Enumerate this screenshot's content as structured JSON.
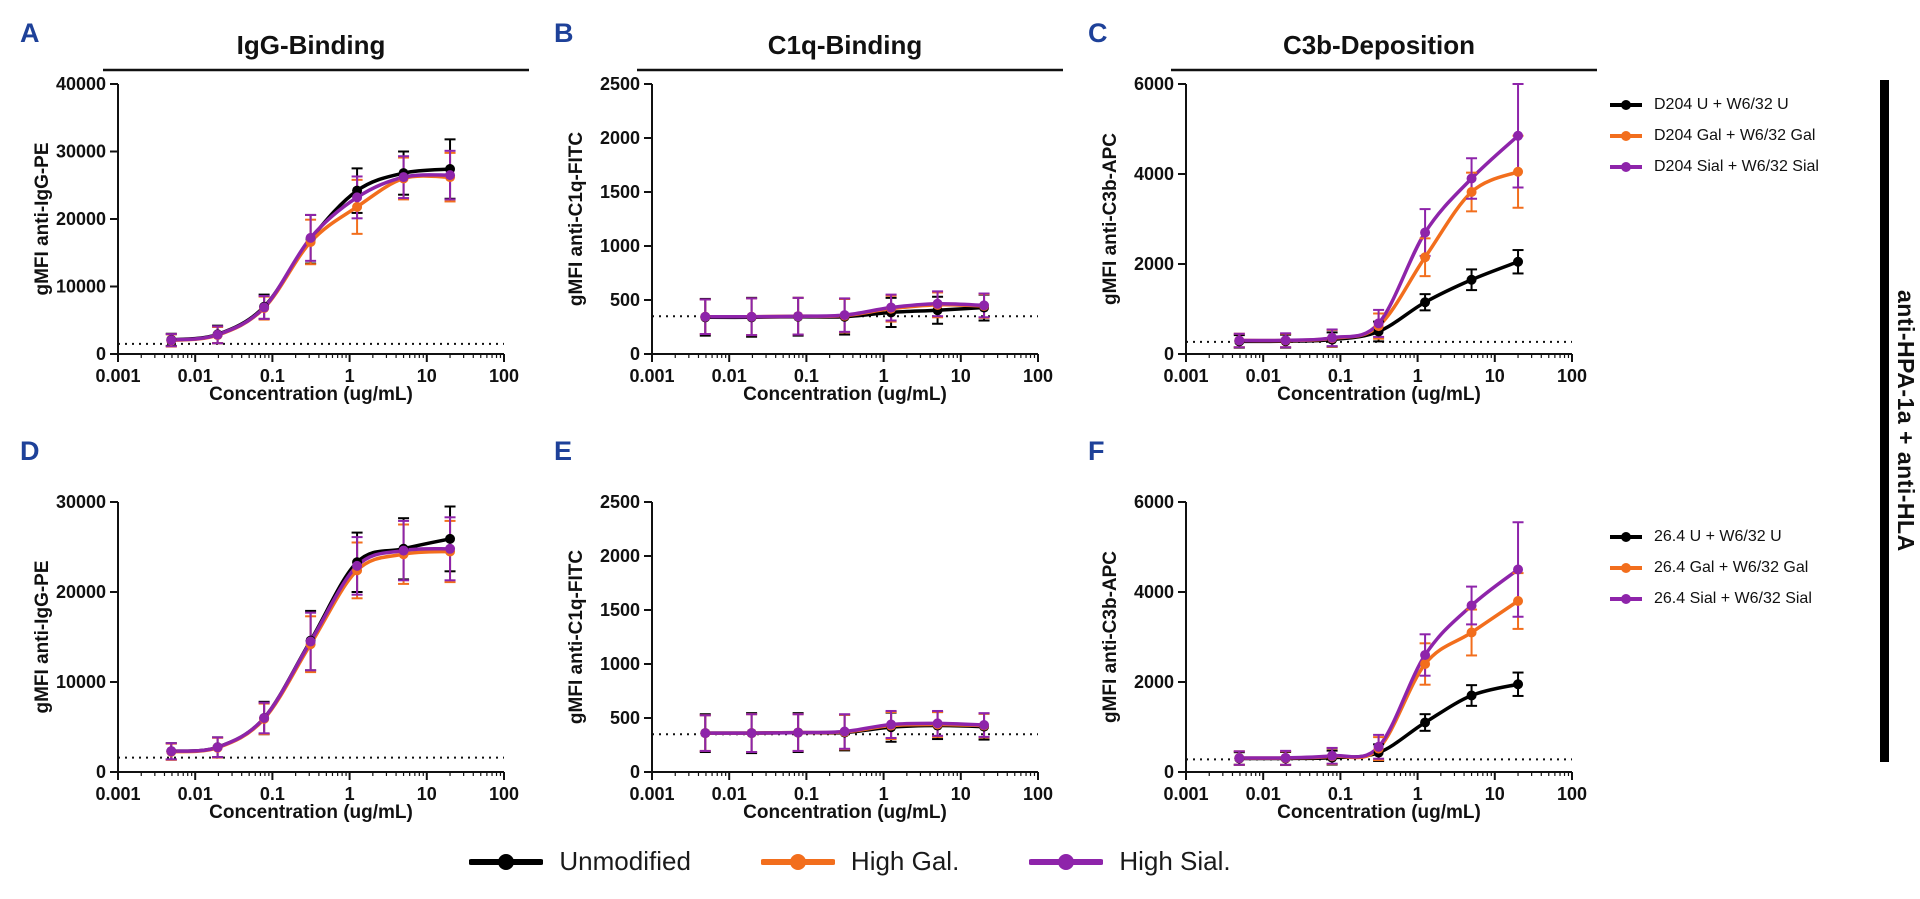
{
  "side_label": "anti-HPA-1a + anti-HLA",
  "colors": {
    "unmodified": "#000000",
    "high_gal": "#F26E1D",
    "high_sial": "#8E24AA",
    "panel_letter": "#1E4199",
    "axis": "#111111"
  },
  "bottom_legend": {
    "items": [
      {
        "label": "Unmodified",
        "color_key": "unmodified"
      },
      {
        "label": "High Gal.",
        "color_key": "high_gal"
      },
      {
        "label": "High Sial.",
        "color_key": "high_sial"
      }
    ]
  },
  "chart_data": [
    {
      "id": "A",
      "type": "line",
      "title": "IgG-Binding",
      "xlabel": "Concentration (ug/mL)",
      "ylabel": "gMFI anti-IgG-PE",
      "xscale": "log",
      "xlim": [
        0.001,
        100
      ],
      "xticks": [
        0.001,
        0.01,
        0.1,
        1,
        10,
        100
      ],
      "xtick_labels": [
        "0.001",
        "0.01",
        "0.1",
        "1",
        "10",
        "100"
      ],
      "ylim": [
        0,
        40000
      ],
      "yticks": [
        0,
        10000,
        20000,
        30000,
        40000
      ],
      "baseline_dotted": 1500,
      "legend_slot": null,
      "x": [
        0.0049,
        0.0195,
        0.0781,
        0.3125,
        1.25,
        5,
        20
      ],
      "series": [
        {
          "name": "D204 U + W6/32 U",
          "color_key": "unmodified",
          "y": [
            2100,
            2900,
            7000,
            17000,
            24200,
            26800,
            27400
          ],
          "err": [
            900,
            1300,
            1800,
            3600,
            3300,
            3200,
            4400
          ]
        },
        {
          "name": "D204 Gal + W6/32 Gal",
          "color_key": "high_gal",
          "y": [
            2000,
            2800,
            6800,
            16600,
            21800,
            26000,
            26200
          ],
          "err": [
            900,
            1200,
            1700,
            3300,
            4000,
            3100,
            3600
          ]
        },
        {
          "name": "D204 Sial + W6/32 Sial",
          "color_key": "high_sial",
          "y": [
            2050,
            2850,
            6900,
            17200,
            23200,
            26200,
            26500
          ],
          "err": [
            900,
            1250,
            1700,
            3400,
            3100,
            3100,
            3600
          ]
        }
      ]
    },
    {
      "id": "B",
      "type": "line",
      "title": "C1q-Binding",
      "xlabel": "Concentration (ug/mL)",
      "ylabel": "gMFI anti-C1q-FITC",
      "xscale": "log",
      "xlim": [
        0.001,
        100
      ],
      "xticks": [
        0.001,
        0.01,
        0.1,
        1,
        10,
        100
      ],
      "xtick_labels": [
        "0.001",
        "0.01",
        "0.1",
        "1",
        "10",
        "100"
      ],
      "ylim": [
        0,
        2500
      ],
      "yticks": [
        0,
        500,
        1000,
        1500,
        2000,
        2500
      ],
      "baseline_dotted": 350,
      "legend_slot": null,
      "x": [
        0.0049,
        0.0195,
        0.0781,
        0.3125,
        1.25,
        5,
        20
      ],
      "series": [
        {
          "name": "D204 U + W6/32 U",
          "color_key": "unmodified",
          "y": [
            340,
            340,
            345,
            345,
            385,
            405,
            430
          ],
          "err": [
            170,
            180,
            175,
            165,
            135,
            125,
            120
          ]
        },
        {
          "name": "D204 Gal + W6/32 Gal",
          "color_key": "high_gal",
          "y": [
            345,
            345,
            350,
            355,
            420,
            455,
            445
          ],
          "err": [
            160,
            170,
            170,
            155,
            120,
            115,
            110
          ]
        },
        {
          "name": "D204 Sial + W6/32 Sial",
          "color_key": "high_sial",
          "y": [
            345,
            345,
            350,
            360,
            430,
            465,
            450
          ],
          "err": [
            160,
            170,
            170,
            155,
            120,
            115,
            110
          ]
        }
      ]
    },
    {
      "id": "C",
      "type": "line",
      "title": "C3b-Deposition",
      "xlabel": "Concentration (ug/mL)",
      "ylabel": "gMFI anti-C3b-APC",
      "xscale": "log",
      "xlim": [
        0.001,
        100
      ],
      "xticks": [
        0.001,
        0.01,
        0.1,
        1,
        10,
        100
      ],
      "xtick_labels": [
        "0.001",
        "0.01",
        "0.1",
        "1",
        "10",
        "100"
      ],
      "ylim": [
        0,
        6000
      ],
      "yticks": [
        0,
        2000,
        4000,
        6000
      ],
      "baseline_dotted": 270,
      "legend_slot": "top",
      "x": [
        0.0049,
        0.0195,
        0.0781,
        0.3125,
        1.25,
        5,
        20
      ],
      "series": [
        {
          "name": "D204 U + W6/32 U",
          "color_key": "unmodified",
          "y": [
            280,
            285,
            320,
            500,
            1150,
            1650,
            2050
          ],
          "err": [
            140,
            145,
            160,
            220,
            180,
            230,
            260
          ]
        },
        {
          "name": "D204 Gal + W6/32 Gal",
          "color_key": "high_gal",
          "y": [
            300,
            300,
            350,
            620,
            2150,
            3600,
            4050
          ],
          "err": [
            150,
            150,
            185,
            280,
            420,
            430,
            800
          ]
        },
        {
          "name": "D204 Sial + W6/32 Sial",
          "color_key": "high_sial",
          "y": [
            300,
            305,
            360,
            680,
            2700,
            3900,
            4850
          ],
          "err": [
            150,
            155,
            185,
            300,
            520,
            450,
            1150
          ]
        }
      ]
    },
    {
      "id": "D",
      "type": "line",
      "title": null,
      "xlabel": "Concentration (ug/mL)",
      "ylabel": "gMFI anti-IgG-PE",
      "xscale": "log",
      "xlim": [
        0.001,
        100
      ],
      "xticks": [
        0.001,
        0.01,
        0.1,
        1,
        10,
        100
      ],
      "xtick_labels": [
        "0.001",
        "0.01",
        "0.1",
        "1",
        "10",
        "100"
      ],
      "ylim": [
        0,
        30000
      ],
      "yticks": [
        0,
        10000,
        20000,
        30000
      ],
      "baseline_dotted": 1600,
      "legend_slot": null,
      "x": [
        0.0049,
        0.0195,
        0.0781,
        0.3125,
        1.25,
        5,
        20
      ],
      "series": [
        {
          "name": "26.4 U + W6/32 U",
          "color_key": "unmodified",
          "y": [
            2300,
            2750,
            6000,
            14600,
            23300,
            24800,
            25900
          ],
          "err": [
            900,
            1100,
            1800,
            3300,
            3300,
            3400,
            3600
          ]
        },
        {
          "name": "26.4 Gal + W6/32 Gal",
          "color_key": "high_gal",
          "y": [
            2250,
            2700,
            5900,
            14200,
            22400,
            24200,
            24500
          ],
          "err": [
            900,
            1100,
            1700,
            3100,
            3100,
            3300,
            3400
          ]
        },
        {
          "name": "26.4 Sial + W6/32 Sial",
          "color_key": "high_sial",
          "y": [
            2300,
            2750,
            6000,
            14500,
            22900,
            24600,
            24800
          ],
          "err": [
            900,
            1100,
            1700,
            3200,
            3200,
            3300,
            3500
          ]
        }
      ]
    },
    {
      "id": "E",
      "type": "line",
      "title": null,
      "xlabel": "Concentration (ug/mL)",
      "ylabel": "gMFI anti-C1q-FITC",
      "xscale": "log",
      "xlim": [
        0.001,
        100
      ],
      "xticks": [
        0.001,
        0.01,
        0.1,
        1,
        10,
        100
      ],
      "xtick_labels": [
        "0.001",
        "0.01",
        "0.1",
        "1",
        "10",
        "100"
      ],
      "ylim": [
        0,
        2500
      ],
      "yticks": [
        0,
        500,
        1000,
        1500,
        2000,
        2500
      ],
      "baseline_dotted": 350,
      "legend_slot": null,
      "x": [
        0.0049,
        0.0195,
        0.0781,
        0.3125,
        1.25,
        5,
        20
      ],
      "series": [
        {
          "name": "26.4 U + W6/32 U",
          "color_key": "unmodified",
          "y": [
            360,
            360,
            365,
            365,
            415,
            430,
            420
          ],
          "err": [
            175,
            185,
            180,
            165,
            135,
            125,
            120
          ]
        },
        {
          "name": "26.4 Gal + W6/32 Gal",
          "color_key": "high_gal",
          "y": [
            360,
            360,
            365,
            370,
            430,
            440,
            430
          ],
          "err": [
            165,
            175,
            170,
            160,
            125,
            115,
            110
          ]
        },
        {
          "name": "26.4 Sial + W6/32 Sial",
          "color_key": "high_sial",
          "y": [
            360,
            360,
            365,
            375,
            440,
            450,
            435
          ],
          "err": [
            165,
            175,
            170,
            160,
            125,
            115,
            110
          ]
        }
      ]
    },
    {
      "id": "F",
      "type": "line",
      "title": null,
      "xlabel": "Concentration (ug/mL)",
      "ylabel": "gMFI anti-C3b-APC",
      "xscale": "log",
      "xlim": [
        0.001,
        100
      ],
      "xticks": [
        0.001,
        0.01,
        0.1,
        1,
        10,
        100
      ],
      "xtick_labels": [
        "0.001",
        "0.01",
        "0.1",
        "1",
        "10",
        "100"
      ],
      "ylim": [
        0,
        6000
      ],
      "yticks": [
        0,
        2000,
        4000,
        6000
      ],
      "baseline_dotted": 280,
      "legend_slot": "bottom",
      "x": [
        0.0049,
        0.0195,
        0.0781,
        0.3125,
        1.25,
        5,
        20
      ],
      "series": [
        {
          "name": "26.4 U + W6/32 U",
          "color_key": "unmodified",
          "y": [
            300,
            300,
            320,
            430,
            1100,
            1700,
            1950
          ],
          "err": [
            140,
            145,
            155,
            185,
            185,
            230,
            260
          ]
        },
        {
          "name": "26.4 Gal + W6/32 Gal",
          "color_key": "high_gal",
          "y": [
            310,
            310,
            350,
            520,
            2400,
            3100,
            3800
          ],
          "err": [
            150,
            150,
            175,
            255,
            460,
            510,
            620
          ]
        },
        {
          "name": "26.4 Sial + W6/32 Sial",
          "color_key": "high_sial",
          "y": [
            310,
            315,
            360,
            560,
            2600,
            3700,
            4500
          ],
          "err": [
            150,
            155,
            175,
            265,
            460,
            420,
            1050
          ]
        }
      ]
    }
  ]
}
